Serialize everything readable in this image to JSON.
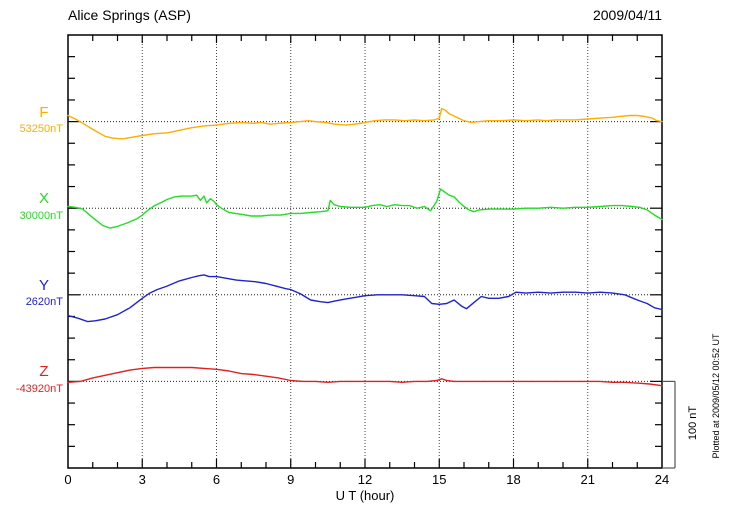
{
  "chart_data": {
    "type": "line",
    "title": "Alice Springs (ASP)",
    "date_label": "2009/04/11",
    "xlabel": "U T (hour)",
    "x_range": [
      0,
      24
    ],
    "x_major_ticks": [
      0,
      3,
      6,
      9,
      12,
      15,
      18,
      21,
      24
    ],
    "x_minor_tick_step_hours": 1,
    "grid": {
      "vertical_dotted_at_hours": [
        3,
        6,
        9,
        12,
        15,
        18,
        21
      ],
      "baseline_dotted": true
    },
    "scale_bar": {
      "label": "100 nT",
      "nT": 100
    },
    "plotted_note": "Plotted at 2009/05/12 00:52 UT",
    "units": "points are [hour UT, offset in nT from series baseline]",
    "series": [
      {
        "name": "F",
        "label": "F",
        "baseline_label": "53250nT",
        "baseline_nT": 53250,
        "color": "#FFAD00",
        "points": [
          [
            0,
            7
          ],
          [
            0.3,
            3
          ],
          [
            0.6,
            -2
          ],
          [
            1,
            -9
          ],
          [
            1.5,
            -17
          ],
          [
            1.8,
            -19
          ],
          [
            2.2,
            -20
          ],
          [
            2.6,
            -18
          ],
          [
            3,
            -16
          ],
          [
            3.5,
            -14
          ],
          [
            4,
            -13
          ],
          [
            4.5,
            -10
          ],
          [
            5,
            -7
          ],
          [
            5.5,
            -5
          ],
          [
            6,
            -4
          ],
          [
            6.5,
            -2
          ],
          [
            7,
            -1
          ],
          [
            7.5,
            -2
          ],
          [
            7.8,
            -1
          ],
          [
            8.2,
            -3
          ],
          [
            8.5,
            -2
          ],
          [
            9,
            -1
          ],
          [
            9.4,
            0
          ],
          [
            9.7,
            1
          ],
          [
            10,
            0
          ],
          [
            10.4,
            -1
          ],
          [
            10.8,
            -3
          ],
          [
            11.2,
            -4
          ],
          [
            11.6,
            -3
          ],
          [
            12,
            -1
          ],
          [
            12.4,
            1
          ],
          [
            12.8,
            2
          ],
          [
            13.2,
            2
          ],
          [
            13.6,
            1
          ],
          [
            14,
            2
          ],
          [
            14.4,
            1
          ],
          [
            14.8,
            2
          ],
          [
            15,
            4
          ],
          [
            15.1,
            15
          ],
          [
            15.25,
            13
          ],
          [
            15.4,
            9
          ],
          [
            15.7,
            5
          ],
          [
            16,
            1
          ],
          [
            16.3,
            -1
          ],
          [
            16.6,
            0
          ],
          [
            17,
            1
          ],
          [
            17.5,
            1
          ],
          [
            18,
            2
          ],
          [
            18.5,
            1
          ],
          [
            19,
            2
          ],
          [
            19.3,
            1
          ],
          [
            19.7,
            2
          ],
          [
            20,
            2
          ],
          [
            20.5,
            2
          ],
          [
            21,
            3
          ],
          [
            21.5,
            4
          ],
          [
            22,
            5
          ],
          [
            22.3,
            6
          ],
          [
            22.7,
            7
          ],
          [
            23,
            7
          ],
          [
            23.3,
            6
          ],
          [
            23.6,
            4
          ],
          [
            23.8,
            1
          ],
          [
            24,
            0
          ]
        ]
      },
      {
        "name": "X",
        "label": "X",
        "baseline_label": "30000nT",
        "baseline_nT": 30000,
        "color": "#22DD22",
        "points": [
          [
            0,
            2
          ],
          [
            0.3,
            1
          ],
          [
            0.6,
            -1
          ],
          [
            1,
            -11
          ],
          [
            1.4,
            -20
          ],
          [
            1.7,
            -23
          ],
          [
            2,
            -21
          ],
          [
            2.4,
            -17
          ],
          [
            2.8,
            -12
          ],
          [
            3,
            -8
          ],
          [
            3.2,
            -3
          ],
          [
            3.5,
            3
          ],
          [
            3.8,
            7
          ],
          [
            4,
            10
          ],
          [
            4.3,
            13
          ],
          [
            4.6,
            14
          ],
          [
            5,
            14
          ],
          [
            5.2,
            15
          ],
          [
            5.35,
            9
          ],
          [
            5.5,
            14
          ],
          [
            5.6,
            6
          ],
          [
            5.75,
            11
          ],
          [
            5.9,
            8
          ],
          [
            6,
            4
          ],
          [
            6.2,
            0
          ],
          [
            6.5,
            -5
          ],
          [
            7,
            -7
          ],
          [
            7.4,
            -9
          ],
          [
            7.8,
            -9
          ],
          [
            8.2,
            -8
          ],
          [
            8.6,
            -8
          ],
          [
            9,
            -6
          ],
          [
            9.4,
            -6
          ],
          [
            9.8,
            -5
          ],
          [
            10.2,
            -4
          ],
          [
            10.5,
            -3
          ],
          [
            10.6,
            9
          ],
          [
            10.75,
            4
          ],
          [
            11,
            2
          ],
          [
            11.4,
            1
          ],
          [
            11.8,
            1
          ],
          [
            12,
            1
          ],
          [
            12.3,
            3
          ],
          [
            12.6,
            4
          ],
          [
            12.9,
            2
          ],
          [
            13.2,
            4
          ],
          [
            13.5,
            3
          ],
          [
            13.8,
            3
          ],
          [
            14.1,
            0
          ],
          [
            14.4,
            2
          ],
          [
            14.65,
            -3
          ],
          [
            14.9,
            8
          ],
          [
            15.05,
            22
          ],
          [
            15.2,
            19
          ],
          [
            15.4,
            15
          ],
          [
            15.6,
            13
          ],
          [
            15.8,
            7
          ],
          [
            16,
            2
          ],
          [
            16.2,
            -2
          ],
          [
            16.4,
            -4
          ],
          [
            16.6,
            -2
          ],
          [
            17,
            -1
          ],
          [
            17.5,
            -1
          ],
          [
            18,
            -1
          ],
          [
            18.5,
            0
          ],
          [
            19,
            0
          ],
          [
            19.5,
            1
          ],
          [
            20,
            0
          ],
          [
            20.5,
            1
          ],
          [
            21,
            1
          ],
          [
            21.5,
            2
          ],
          [
            22,
            3
          ],
          [
            22.4,
            3
          ],
          [
            22.8,
            2
          ],
          [
            23.1,
            1
          ],
          [
            23.4,
            -2
          ],
          [
            23.7,
            -8
          ],
          [
            24,
            -13
          ]
        ]
      },
      {
        "name": "Y",
        "label": "Y",
        "baseline_label": "2620nT",
        "baseline_nT": 2620,
        "color": "#2222CC",
        "points": [
          [
            0,
            -24
          ],
          [
            0.4,
            -27
          ],
          [
            0.8,
            -31
          ],
          [
            1.1,
            -30
          ],
          [
            1.5,
            -28
          ],
          [
            2,
            -23
          ],
          [
            2.5,
            -15
          ],
          [
            3,
            -4
          ],
          [
            3.3,
            2
          ],
          [
            3.6,
            6
          ],
          [
            4,
            10
          ],
          [
            4.5,
            16
          ],
          [
            5,
            20
          ],
          [
            5.3,
            22
          ],
          [
            5.5,
            23
          ],
          [
            5.7,
            21
          ],
          [
            6,
            21
          ],
          [
            6.4,
            19
          ],
          [
            6.8,
            17
          ],
          [
            7.2,
            16
          ],
          [
            7.6,
            15
          ],
          [
            8,
            13
          ],
          [
            8.4,
            10
          ],
          [
            8.8,
            7
          ],
          [
            9,
            6
          ],
          [
            9.4,
            1
          ],
          [
            9.8,
            -6
          ],
          [
            10.2,
            -8
          ],
          [
            10.5,
            -9
          ],
          [
            10.8,
            -7
          ],
          [
            11.2,
            -5
          ],
          [
            11.6,
            -3
          ],
          [
            12,
            -1
          ],
          [
            12.5,
            0
          ],
          [
            13,
            0
          ],
          [
            13.5,
            0
          ],
          [
            14,
            -1
          ],
          [
            14.4,
            -2
          ],
          [
            14.7,
            -10
          ],
          [
            15,
            -11
          ],
          [
            15.3,
            -10
          ],
          [
            15.6,
            -6
          ],
          [
            15.9,
            -13
          ],
          [
            16.1,
            -16
          ],
          [
            16.4,
            -9
          ],
          [
            16.7,
            -2
          ],
          [
            17,
            -4
          ],
          [
            17.4,
            -4
          ],
          [
            17.8,
            -2
          ],
          [
            18.1,
            3
          ],
          [
            18.5,
            2
          ],
          [
            19,
            3
          ],
          [
            19.5,
            2
          ],
          [
            20,
            3
          ],
          [
            20.5,
            3
          ],
          [
            21,
            2
          ],
          [
            21.5,
            3
          ],
          [
            22,
            2
          ],
          [
            22.5,
            0
          ],
          [
            23,
            -6
          ],
          [
            23.4,
            -10
          ],
          [
            23.7,
            -15
          ],
          [
            24,
            -17
          ]
        ]
      },
      {
        "name": "Z",
        "label": "Z",
        "baseline_label": "-43920nT",
        "baseline_nT": -43920,
        "color": "#DD2222",
        "points": [
          [
            0,
            -1
          ],
          [
            0.5,
            0
          ],
          [
            1,
            4
          ],
          [
            1.5,
            7
          ],
          [
            2,
            10
          ],
          [
            2.5,
            13
          ],
          [
            3,
            15
          ],
          [
            3.5,
            16
          ],
          [
            4,
            16
          ],
          [
            4.5,
            16
          ],
          [
            5,
            16
          ],
          [
            5.5,
            15
          ],
          [
            6,
            14
          ],
          [
            6.5,
            12
          ],
          [
            7,
            9
          ],
          [
            7.5,
            8
          ],
          [
            8,
            6
          ],
          [
            8.5,
            4
          ],
          [
            9,
            1
          ],
          [
            9.5,
            0
          ],
          [
            10,
            0
          ],
          [
            10.5,
            -1
          ],
          [
            11,
            0
          ],
          [
            11.5,
            0
          ],
          [
            12,
            0
          ],
          [
            12.5,
            0
          ],
          [
            13,
            0
          ],
          [
            13.5,
            -1
          ],
          [
            14,
            0
          ],
          [
            14.5,
            0
          ],
          [
            14.9,
            1
          ],
          [
            15.1,
            3
          ],
          [
            15.3,
            1
          ],
          [
            15.6,
            0
          ],
          [
            16,
            0
          ],
          [
            16.5,
            0
          ],
          [
            17,
            0
          ],
          [
            17.5,
            0
          ],
          [
            18,
            0
          ],
          [
            18.5,
            0
          ],
          [
            19,
            0
          ],
          [
            19.5,
            0
          ],
          [
            20,
            0
          ],
          [
            20.5,
            0
          ],
          [
            21,
            0
          ],
          [
            21.5,
            0
          ],
          [
            22,
            -1
          ],
          [
            22.5,
            -1
          ],
          [
            23,
            -2
          ],
          [
            23.5,
            -3
          ],
          [
            24,
            -5
          ]
        ]
      }
    ]
  }
}
